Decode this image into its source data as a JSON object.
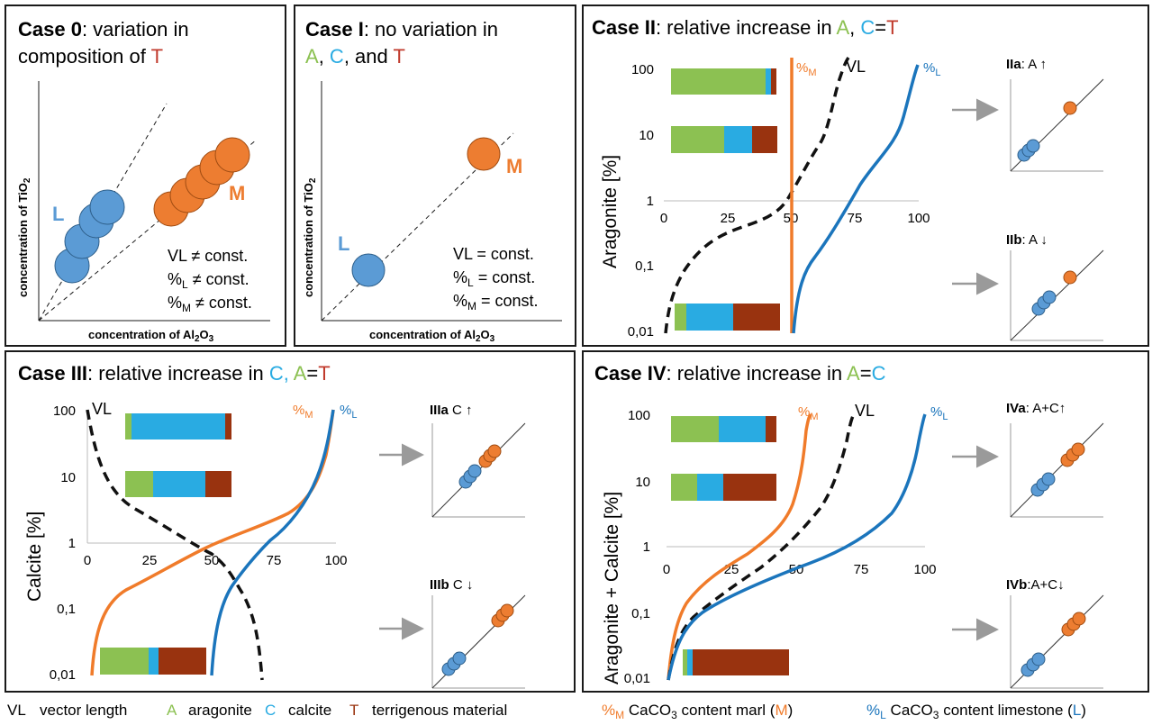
{
  "colors": {
    "aragonite": "#8cc152",
    "calcite": "#29abe2",
    "terrigenous": "#99330f",
    "marl": "#f07b2a",
    "limestone": "#1b75bc",
    "point_L": "#5b9bd5",
    "point_M": "#ed7d31",
    "arrow": "#9a9a9a"
  },
  "case0": {
    "title_bold": "Case 0",
    "title_rest": ": variation in",
    "title_line2a": "composition of ",
    "title_T": "T",
    "xlabel": "concentration of Al",
    "xlabel_sub": "2",
    "xlabel_tail": "O",
    "xlabel_sub2": "3",
    "ylabel": "concentration of TiO",
    "ylabel_sub": "2",
    "label_L": "L",
    "label_M": "M",
    "stat1": "VL ≠ const.",
    "stat2a": "%",
    "stat2s": "L",
    "stat2b": " ≠ const.",
    "stat3a": "%",
    "stat3s": "M",
    "stat3b": " ≠ const."
  },
  "case1": {
    "title_bold": "Case I",
    "title_rest": ": no variation in",
    "l2_A": "A",
    "l2_c1": ", ",
    "l2_C": "C",
    "l2_c2": ", and ",
    "l2_T": "T",
    "xlabel": "concentration of Al",
    "xlabel_sub": "2",
    "xlabel_tail": "O",
    "xlabel_sub2": "3",
    "ylabel": "concentration of TiO",
    "ylabel_sub": "2",
    "label_L": "L",
    "label_M": "M",
    "stat1": "VL = const.",
    "stat2a": "%",
    "stat2s": "L",
    "stat2b": " = const.",
    "stat3a": "%",
    "stat3s": "M",
    "stat3b": " = const."
  },
  "case2": {
    "title_bold": "Case II",
    "title_rest": ": relative increase in ",
    "title_A": "A",
    "title_comma": ", ",
    "title_C": "C",
    "title_eq": "=",
    "title_T": "T",
    "ylabel": "Aragonite [%]",
    "yticks": [
      "100",
      "10",
      "1",
      "0,1",
      "0,01"
    ],
    "xticks": [
      "0",
      "25",
      "50",
      "75",
      "100"
    ],
    "vl": "VL",
    "pm": "%",
    "pm_s": "M",
    "pl": "%",
    "pl_s": "L",
    "sub_a_bold": "IIa",
    "sub_a_rest": ": A ↑",
    "sub_b_bold": "IIb",
    "sub_b_rest": ": A ↓"
  },
  "case3": {
    "title_bold": "Case III",
    "title_rest": ": relative increase in ",
    "title_C": "C, ",
    "title_A": "A",
    "title_eq": "=",
    "title_T": "T",
    "ylabel": "Calcite [%]",
    "yticks": [
      "100",
      "10",
      "1",
      "0,1",
      "0,01"
    ],
    "xticks": [
      "0",
      "25",
      "50",
      "75",
      "100"
    ],
    "vl": "VL",
    "pm": "%",
    "pm_s": "M",
    "pl": "%",
    "pl_s": "L",
    "sub_a_bold": "IIIa",
    "sub_a_rest": " C ↑",
    "sub_b_bold": "IIIb",
    "sub_b_rest": " C ↓"
  },
  "case4": {
    "title_bold": "Case IV",
    "title_rest": ": relative increase in ",
    "title_A": "A",
    "title_eq": "=",
    "title_C": "C",
    "ylabel": "Aragonite + Calcite [%]",
    "yticks": [
      "100",
      "10",
      "1",
      "0,1",
      "0,01"
    ],
    "xticks": [
      "0",
      "25",
      "50",
      "75",
      "100"
    ],
    "vl": "VL",
    "pm": "%",
    "pm_s": "M",
    "pl": "%",
    "pl_s": "L",
    "sub_a_bold": "IVa",
    "sub_a_rest": ": A+C↑",
    "sub_b_bold": "IVb",
    "sub_b_rest": ":A+C↓"
  },
  "legend": {
    "vl_key": "VL",
    "vl_text": "vector length",
    "a_key": "A",
    "a_text": "aragonite",
    "c_key": "C",
    "c_text": "calcite",
    "t_key": "T",
    "t_text": "terrigenous material",
    "pm_key": "%",
    "pm_sub": "M",
    "pm_text1": " CaCO",
    "pm_sub3": "3",
    "pm_text2": " content marl (",
    "pm_M": "M",
    "pm_close": ")",
    "pl_key": "%",
    "pl_sub": "L",
    "pl_text1": " CaCO",
    "pl_sub3": "3",
    "pl_text2": " content limestone (",
    "pl_L": "L",
    "pl_close": ")"
  }
}
